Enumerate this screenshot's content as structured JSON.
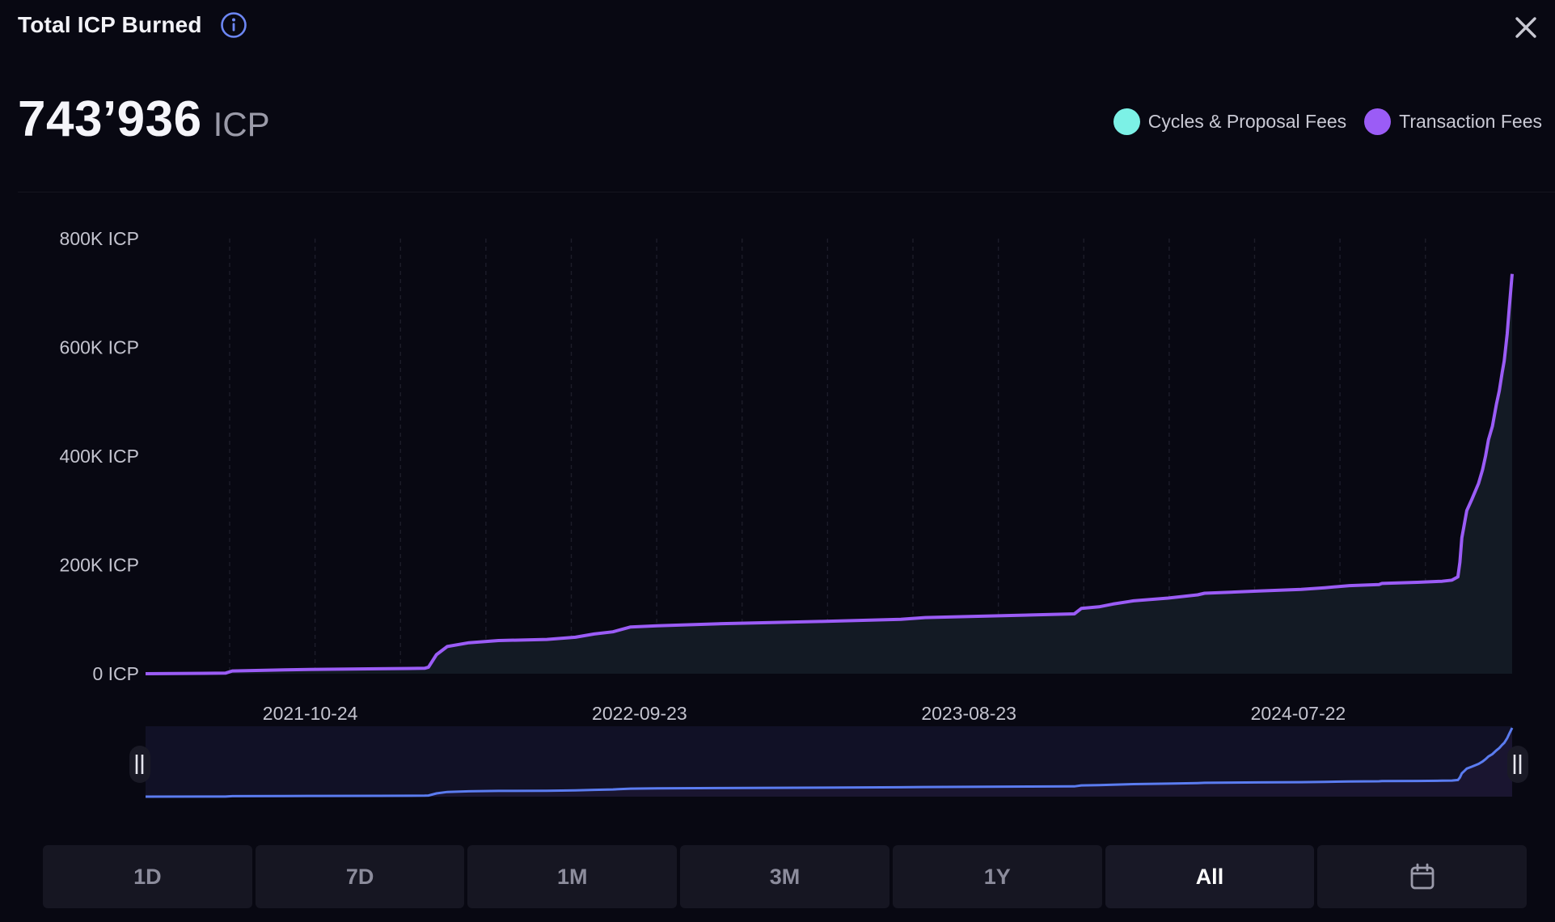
{
  "header": {
    "title": "Total ICP Burned",
    "info_icon": "info-icon",
    "close_icon": "close-icon"
  },
  "total": {
    "value": "743’936",
    "unit": "ICP"
  },
  "legend": [
    {
      "label": "Cycles & Proposal Fees",
      "color": "#7cf1e6"
    },
    {
      "label": "Transaction Fees",
      "color": "#9b5cf6"
    }
  ],
  "range_buttons": [
    {
      "label": "1D",
      "active": false
    },
    {
      "label": "7D",
      "active": false
    },
    {
      "label": "1M",
      "active": false
    },
    {
      "label": "3M",
      "active": false
    },
    {
      "label": "1Y",
      "active": false
    },
    {
      "label": "All",
      "active": true
    },
    {
      "label": "",
      "icon": "calendar-icon"
    }
  ],
  "colors": {
    "line": "#9b5cf6",
    "area_fill": "#131a24",
    "navigator_line": "#5b7cf0",
    "background": "#080812"
  },
  "chart_data": {
    "type": "area",
    "ylim": [
      0,
      800000
    ],
    "yticks": [
      0,
      200000,
      400000,
      600000,
      800000
    ],
    "ytick_labels": [
      "0 ICP",
      "200K ICP",
      "400K ICP",
      "600K ICP",
      "800K ICP"
    ],
    "xlim": [
      "2021-05-10",
      "2025-02-24"
    ],
    "xticks": [
      "2021-10-24",
      "2022-09-23",
      "2023-08-23",
      "2024-07-22"
    ],
    "grid": "vertical-dashed",
    "legend_placement": "top-right",
    "series": [
      {
        "name": "Transaction Fees",
        "color": "#9b5cf6",
        "points": [
          [
            "2021-05-10",
            0
          ],
          [
            "2021-07-30",
            1000
          ],
          [
            "2021-08-06",
            5000
          ],
          [
            "2021-09-28",
            7000
          ],
          [
            "2021-11-01",
            8000
          ],
          [
            "2022-01-01",
            9000
          ],
          [
            "2022-02-17",
            10000
          ],
          [
            "2022-02-21",
            12000
          ],
          [
            "2022-03-01",
            35000
          ],
          [
            "2022-03-12",
            50000
          ],
          [
            "2022-04-03",
            57000
          ],
          [
            "2022-05-03",
            61000
          ],
          [
            "2022-06-21",
            63000
          ],
          [
            "2022-07-20",
            67000
          ],
          [
            "2022-08-08",
            73000
          ],
          [
            "2022-08-27",
            77000
          ],
          [
            "2022-09-14",
            86000
          ],
          [
            "2022-10-11",
            88000
          ],
          [
            "2022-12-16",
            92000
          ],
          [
            "2023-03-25",
            96000
          ],
          [
            "2023-06-15",
            100000
          ],
          [
            "2023-07-08",
            103000
          ],
          [
            "2023-10-25",
            108000
          ],
          [
            "2023-12-08",
            110000
          ],
          [
            "2023-12-15",
            120000
          ],
          [
            "2024-01-02",
            123000
          ],
          [
            "2024-01-16",
            128000
          ],
          [
            "2024-02-06",
            134000
          ],
          [
            "2024-03-12",
            139000
          ],
          [
            "2024-04-11",
            145000
          ],
          [
            "2024-04-18",
            148000
          ],
          [
            "2024-06-12",
            152000
          ],
          [
            "2024-07-25",
            155000
          ],
          [
            "2024-08-18",
            158000
          ],
          [
            "2024-09-12",
            162000
          ],
          [
            "2024-10-12",
            164000
          ],
          [
            "2024-10-15",
            166000
          ],
          [
            "2024-11-20",
            168000
          ],
          [
            "2024-12-15",
            170000
          ],
          [
            "2024-12-25",
            172000
          ],
          [
            "2024-12-31",
            178000
          ],
          [
            "2025-01-02",
            205000
          ],
          [
            "2025-01-04",
            250000
          ],
          [
            "2025-01-06",
            270000
          ],
          [
            "2025-01-09",
            300000
          ],
          [
            "2025-01-14",
            320000
          ],
          [
            "2025-01-21",
            350000
          ],
          [
            "2025-01-25",
            375000
          ],
          [
            "2025-01-28",
            400000
          ],
          [
            "2025-01-31",
            430000
          ],
          [
            "2025-02-04",
            455000
          ],
          [
            "2025-02-08",
            495000
          ],
          [
            "2025-02-11",
            520000
          ],
          [
            "2025-02-14",
            555000
          ],
          [
            "2025-02-16",
            575000
          ],
          [
            "2025-02-19",
            625000
          ],
          [
            "2025-02-21",
            670000
          ],
          [
            "2025-02-24",
            735000
          ]
        ]
      }
    ]
  }
}
